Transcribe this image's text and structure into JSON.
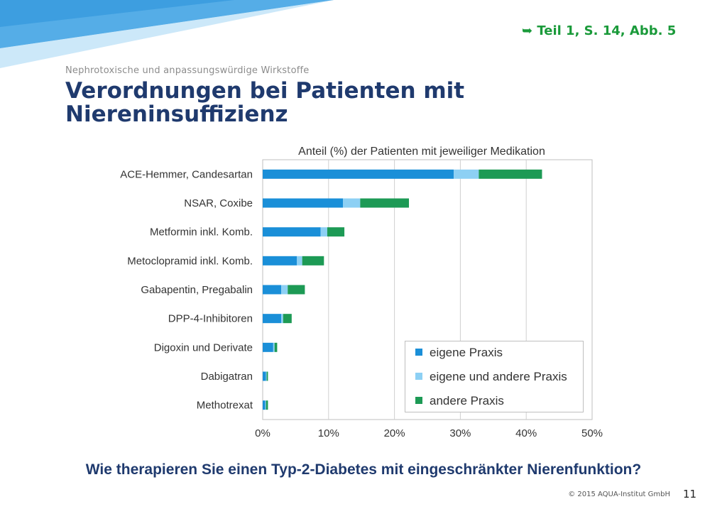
{
  "header": {
    "reference": "➥ Teil  1, S. 14, Abb. 5",
    "kicker": "Nephrotoxische und anpassungswürdige Wirkstoffe",
    "title_line1": "Verordnungen bei Patienten mit",
    "title_line2": "Niereninsuffizienz"
  },
  "chart_data": {
    "type": "bar",
    "orientation": "horizontal",
    "stacked": true,
    "title": "Anteil (%) der Patienten mit jeweiliger Medikation",
    "categories": [
      "ACE-Hemmer,  Candesartan",
      "NSAR, Coxibe",
      "Metformin inkl. Komb.",
      "Metoclopramid inkl. Komb.",
      "Gabapentin, Pregabalin",
      "DPP-4-Inhibitoren",
      "Digoxin und Derivate",
      "Dabigatran",
      "Methotrexat"
    ],
    "series": [
      {
        "name": "eigene Praxis",
        "color": "#1a8fd8",
        "values": [
          29.0,
          12.2,
          8.8,
          5.2,
          2.8,
          2.8,
          1.6,
          0.5,
          0.4
        ]
      },
      {
        "name": "eigene und andere Praxis",
        "color": "#8dd0f4",
        "values": [
          3.8,
          2.6,
          1.0,
          0.8,
          1.0,
          0.3,
          0.2,
          0.1,
          0.1
        ]
      },
      {
        "name": "andere Praxis",
        "color": "#1d9a55",
        "values": [
          9.6,
          7.4,
          2.6,
          3.3,
          2.6,
          1.3,
          0.4,
          0.2,
          0.3
        ]
      }
    ],
    "xlim": [
      0,
      50
    ],
    "xticks": [
      "0%",
      "10%",
      "20%",
      "30%",
      "40%",
      "50%"
    ],
    "grid": true,
    "legend_position": "bottom-right"
  },
  "question": "Wie therapieren Sie einen Typ-2-Diabetes mit eingeschränkter Nierenfunktion?",
  "footer": {
    "copyright": "© 2015 AQUA-Institut GmbH",
    "page": "11"
  },
  "colors": {
    "title": "#1f3a6e",
    "reference": "#1a9a3a",
    "decoration": "#2e8fd3"
  }
}
